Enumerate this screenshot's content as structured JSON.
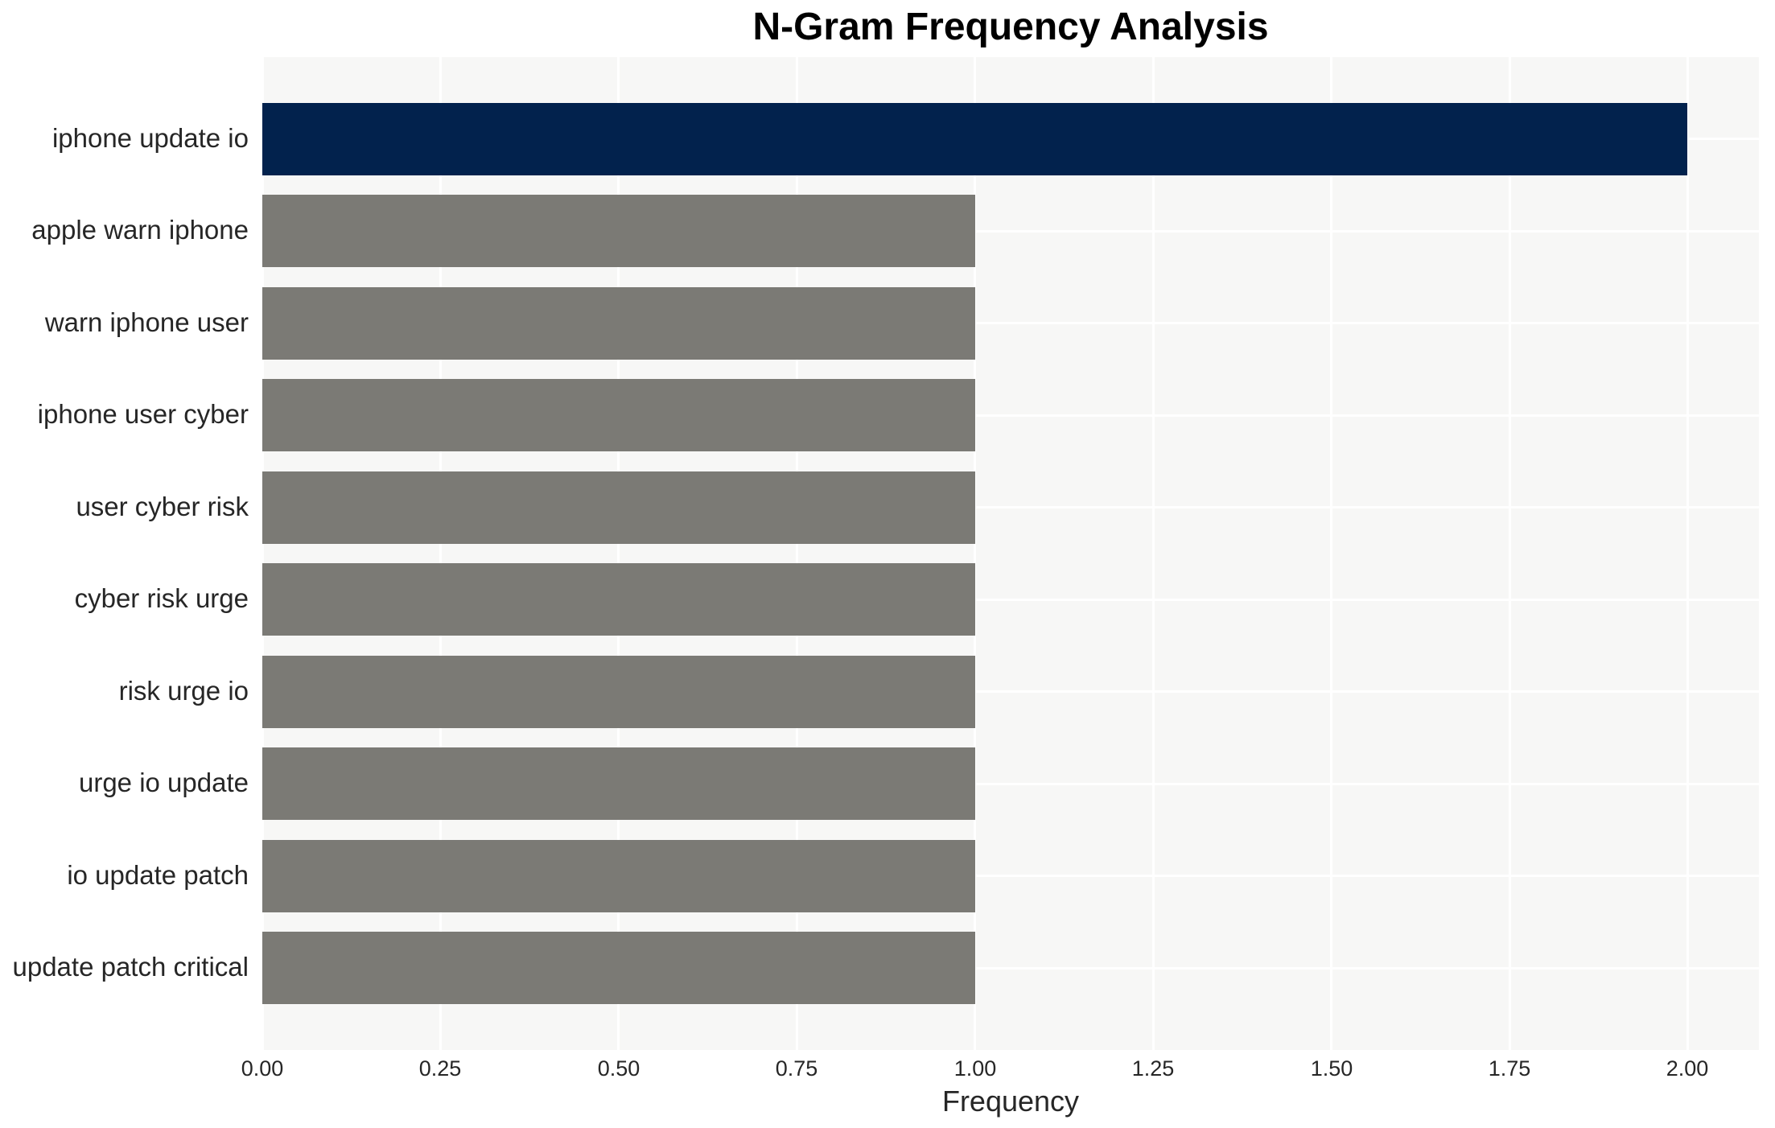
{
  "chart_data": {
    "type": "bar",
    "orientation": "horizontal",
    "title": "N-Gram Frequency Analysis",
    "xlabel": "Frequency",
    "ylabel": "",
    "categories": [
      "iphone update io",
      "apple warn iphone",
      "warn iphone user",
      "iphone user cyber",
      "user cyber risk",
      "cyber risk urge",
      "risk urge io",
      "urge io update",
      "io update patch",
      "update patch critical"
    ],
    "values": [
      2,
      1,
      1,
      1,
      1,
      1,
      1,
      1,
      1,
      1
    ],
    "highlight_index": 0,
    "xlim": [
      0,
      2.1
    ],
    "x_ticks": [
      0,
      0.25,
      0.5,
      0.75,
      1.0,
      1.25,
      1.5,
      1.75,
      2.0
    ],
    "x_tick_labels": [
      "0.00",
      "0.25",
      "0.50",
      "0.75",
      "1.00",
      "1.25",
      "1.50",
      "1.75",
      "2.00"
    ],
    "grid": true,
    "legend": false,
    "colors": {
      "highlight_bar": "#02224d",
      "default_bar": "#7b7a75",
      "plot_background": "#f7f7f6",
      "grid_line": "#ffffff",
      "tick_text": "#262626",
      "title_text": "#000000"
    }
  }
}
